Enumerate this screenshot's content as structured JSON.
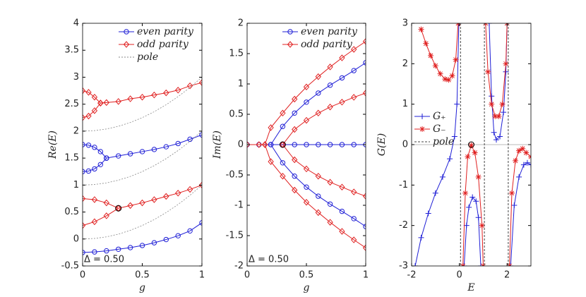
{
  "chart_data": [
    {
      "type": "line",
      "xlabel": "g",
      "ylabel": "Re(E)",
      "xlim": [
        0,
        1
      ],
      "ylim": [
        -0.5,
        4
      ],
      "xticks": [
        0,
        0.5,
        1
      ],
      "yticks": [
        -0.5,
        0,
        0.5,
        1,
        1.5,
        2,
        2.5,
        3,
        3.5,
        4
      ],
      "legend": "upper right",
      "annotation": "Δ = 0.50",
      "circle": {
        "x": 0.3,
        "y": 0.57
      },
      "series": [
        {
          "name": "even parity",
          "color": "#1f1fd6",
          "marker": "o",
          "curves": [
            {
              "x": [
                0,
                0.1,
                0.2,
                0.3,
                0.4,
                0.5,
                0.6,
                0.7,
                0.8,
                0.9,
                1
              ],
              "values": [
                -0.25,
                -0.24,
                -0.22,
                -0.19,
                -0.16,
                -0.12,
                -0.07,
                -0.01,
                0.06,
                0.15,
                0.3
              ]
            },
            {
              "x": [
                0,
                0.05,
                0.1,
                0.15,
                0.2
              ],
              "values": [
                1.75,
                1.74,
                1.7,
                1.62,
                1.5
              ]
            },
            {
              "x": [
                0,
                0.05,
                0.1,
                0.15,
                0.2
              ],
              "values": [
                1.25,
                1.26,
                1.3,
                1.38,
                1.5
              ]
            },
            {
              "x": [
                0.2,
                0.3,
                0.4,
                0.5,
                0.6,
                0.7,
                0.8,
                0.9,
                1
              ],
              "values": [
                1.5,
                1.54,
                1.58,
                1.62,
                1.66,
                1.71,
                1.77,
                1.85,
                1.93
              ]
            }
          ]
        },
        {
          "name": "odd parity",
          "color": "#e02020",
          "marker": "d",
          "curves": [
            {
              "x": [
                0,
                0.05,
                0.1,
                0.15
              ],
              "values": [
                2.75,
                2.72,
                2.63,
                2.52
              ]
            },
            {
              "x": [
                0,
                0.05,
                0.1,
                0.15
              ],
              "values": [
                2.25,
                2.28,
                2.38,
                2.52
              ]
            },
            {
              "x": [
                0.15,
                0.2,
                0.3,
                0.4,
                0.5,
                0.6,
                0.7,
                0.8,
                0.9,
                1
              ],
              "values": [
                2.52,
                2.53,
                2.55,
                2.6,
                2.63,
                2.67,
                2.71,
                2.76,
                2.84,
                2.9
              ]
            },
            {
              "x": [
                0,
                0.1,
                0.2,
                0.3
              ],
              "values": [
                0.75,
                0.73,
                0.67,
                0.57
              ]
            },
            {
              "x": [
                0,
                0.1,
                0.2,
                0.3
              ],
              "values": [
                0.25,
                0.32,
                0.43,
                0.57
              ]
            },
            {
              "x": [
                0.3,
                0.4,
                0.5,
                0.6,
                0.7,
                0.8,
                0.9,
                1
              ],
              "values": [
                0.57,
                0.62,
                0.67,
                0.73,
                0.79,
                0.85,
                0.92,
                1
              ]
            }
          ]
        },
        {
          "name": "pole",
          "color": "#888888",
          "dash": "2,2",
          "curves": [
            {
              "x": [
                0,
                0.1,
                0.2,
                0.3,
                0.4,
                0.5,
                0.6,
                0.7,
                0.8,
                0.9,
                1
              ],
              "values": [
                0,
                0.01,
                0.04,
                0.09,
                0.16,
                0.25,
                0.36,
                0.49,
                0.64,
                0.81,
                1
              ]
            },
            {
              "x": [
                0,
                0.1,
                0.2,
                0.3,
                0.4,
                0.5,
                0.6,
                0.7,
                0.8,
                0.9,
                1
              ],
              "values": [
                1,
                1.01,
                1.04,
                1.09,
                1.16,
                1.25,
                1.36,
                1.49,
                1.64,
                1.81,
                2
              ]
            },
            {
              "x": [
                0,
                0.1,
                0.2,
                0.3,
                0.4,
                0.5,
                0.6,
                0.7,
                0.8,
                0.9,
                1
              ],
              "values": [
                2,
                2.01,
                2.04,
                2.09,
                2.16,
                2.25,
                2.36,
                2.49,
                2.64,
                2.81,
                3
              ]
            }
          ]
        }
      ]
    },
    {
      "type": "line",
      "xlabel": "g",
      "ylabel": "Im(E)",
      "xlim": [
        0,
        1
      ],
      "ylim": [
        -2,
        2
      ],
      "xticks": [
        0,
        0.5,
        1
      ],
      "yticks": [
        -2,
        -1.5,
        -1,
        -0.5,
        0,
        0.5,
        1,
        1.5,
        2
      ],
      "legend": "upper right",
      "annotation": "Δ = 0.50",
      "circle": {
        "x": 0.3,
        "y": 0
      },
      "series": [
        {
          "name": "even parity",
          "color": "#1f1fd6",
          "marker": "o",
          "curves": [
            {
              "x": [
                0,
                0.1,
                0.2,
                0.3,
                0.4,
                0.5,
                0.6,
                0.7,
                0.8,
                0.9,
                1
              ],
              "values": [
                0,
                0,
                0,
                0,
                0,
                0,
                0,
                0,
                0,
                0,
                0
              ]
            },
            {
              "x": [
                0.2,
                0.3,
                0.4,
                0.5,
                0.6,
                0.7,
                0.8,
                0.9,
                1
              ],
              "values": [
                0,
                0.3,
                0.52,
                0.7,
                0.85,
                0.98,
                1.1,
                1.22,
                1.35
              ]
            },
            {
              "x": [
                0.2,
                0.3,
                0.4,
                0.5,
                0.6,
                0.7,
                0.8,
                0.9,
                1
              ],
              "values": [
                0,
                -0.3,
                -0.52,
                -0.7,
                -0.85,
                -0.98,
                -1.1,
                -1.22,
                -1.35
              ]
            }
          ]
        },
        {
          "name": "odd parity",
          "color": "#e02020",
          "marker": "d",
          "curves": [
            {
              "x": [
                0,
                0.1,
                0.15
              ],
              "values": [
                0,
                0,
                0
              ]
            },
            {
              "x": [
                0.15,
                0.2,
                0.3,
                0.4,
                0.5,
                0.6,
                0.7,
                0.8,
                0.9,
                1
              ],
              "values": [
                0,
                0.28,
                0.52,
                0.75,
                0.95,
                1.12,
                1.28,
                1.43,
                1.57,
                1.7
              ]
            },
            {
              "x": [
                0.15,
                0.2,
                0.3,
                0.4,
                0.5,
                0.6,
                0.7,
                0.8,
                0.9,
                1
              ],
              "values": [
                0,
                -0.28,
                -0.52,
                -0.75,
                -0.95,
                -1.12,
                -1.28,
                -1.43,
                -1.57,
                -1.7
              ]
            },
            {
              "x": [
                0.3,
                0.4,
                0.5,
                0.6,
                0.7,
                0.8,
                0.9,
                1
              ],
              "values": [
                0,
                0.25,
                0.4,
                0.52,
                0.62,
                0.7,
                0.78,
                0.85
              ]
            },
            {
              "x": [
                0.3,
                0.4,
                0.5,
                0.6,
                0.7,
                0.8,
                0.9,
                1
              ],
              "values": [
                0,
                -0.25,
                -0.4,
                -0.52,
                -0.62,
                -0.7,
                -0.78,
                -0.85
              ]
            }
          ]
        }
      ]
    },
    {
      "type": "line",
      "xlabel": "E",
      "ylabel": "G(E)",
      "xlim": [
        -2,
        3
      ],
      "ylim": [
        -3,
        3
      ],
      "xticks": [
        -2,
        0,
        2
      ],
      "yticks": [
        -3,
        -2,
        -1,
        0,
        1,
        2,
        3
      ],
      "legend": "center left",
      "hline": 0,
      "circle": {
        "x": 0.5,
        "y": 0
      },
      "series": [
        {
          "name": "G₊",
          "color": "#1f1fd6",
          "marker": "+",
          "curves": [
            {
              "x": [
                -1.85,
                -1.6,
                -1.3,
                -1,
                -0.7,
                -0.4,
                -0.2,
                -0.1,
                -0.02
              ],
              "values": [
                -3,
                -2.3,
                -1.7,
                -1.2,
                -0.8,
                -0.35,
                0.2,
                1,
                3
              ]
            },
            {
              "x": [
                0.2,
                0.3,
                0.4,
                0.55,
                0.7,
                0.8,
                0.9
              ],
              "values": [
                -3,
                -2,
                -1.55,
                -1.3,
                -1.4,
                -1.8,
                -3
              ]
            },
            {
              "x": [
                1.25,
                1.35,
                1.45,
                1.55,
                1.7,
                1.85,
                1.95,
                2
              ],
              "values": [
                3,
                1.2,
                0.3,
                0.12,
                0.2,
                0.8,
                1.8,
                3
              ]
            },
            {
              "x": [
                2.15,
                2.3,
                2.5,
                2.7,
                2.85,
                3
              ],
              "values": [
                -3,
                -1.5,
                -0.8,
                -0.5,
                -0.45,
                -0.5
              ]
            }
          ]
        },
        {
          "name": "G₋",
          "color": "#e02020",
          "marker": "*",
          "curves": [
            {
              "x": [
                -1.6,
                -1.4,
                -1.2,
                -1,
                -0.8,
                -0.6,
                -0.45,
                -0.3,
                -0.15,
                -0.05
              ],
              "values": [
                2.85,
                2.5,
                2.2,
                1.95,
                1.75,
                1.62,
                1.6,
                1.7,
                2.1,
                3
              ]
            },
            {
              "x": [
                0.15,
                0.25,
                0.35,
                0.5,
                0.65,
                0.8,
                0.95,
                1
              ],
              "values": [
                -3,
                -1.2,
                -0.3,
                -0.02,
                -0.2,
                -0.8,
                -2,
                -3
              ]
            },
            {
              "x": [
                1.1,
                1.2,
                1.35,
                1.5,
                1.65,
                1.8,
                1.95,
                2
              ],
              "values": [
                3,
                1.8,
                1,
                0.7,
                0.7,
                1,
                2,
                3
              ]
            },
            {
              "x": [
                2.1,
                2.2,
                2.35,
                2.5,
                2.65,
                2.8,
                3
              ],
              "values": [
                -3,
                -1.2,
                -0.4,
                -0.15,
                -0.1,
                -0.2,
                -0.3
              ]
            }
          ]
        },
        {
          "name": "pole",
          "color": "#444444",
          "dash": "3,2",
          "vlines": [
            0.05,
            1.05,
            2.05
          ]
        }
      ]
    }
  ]
}
